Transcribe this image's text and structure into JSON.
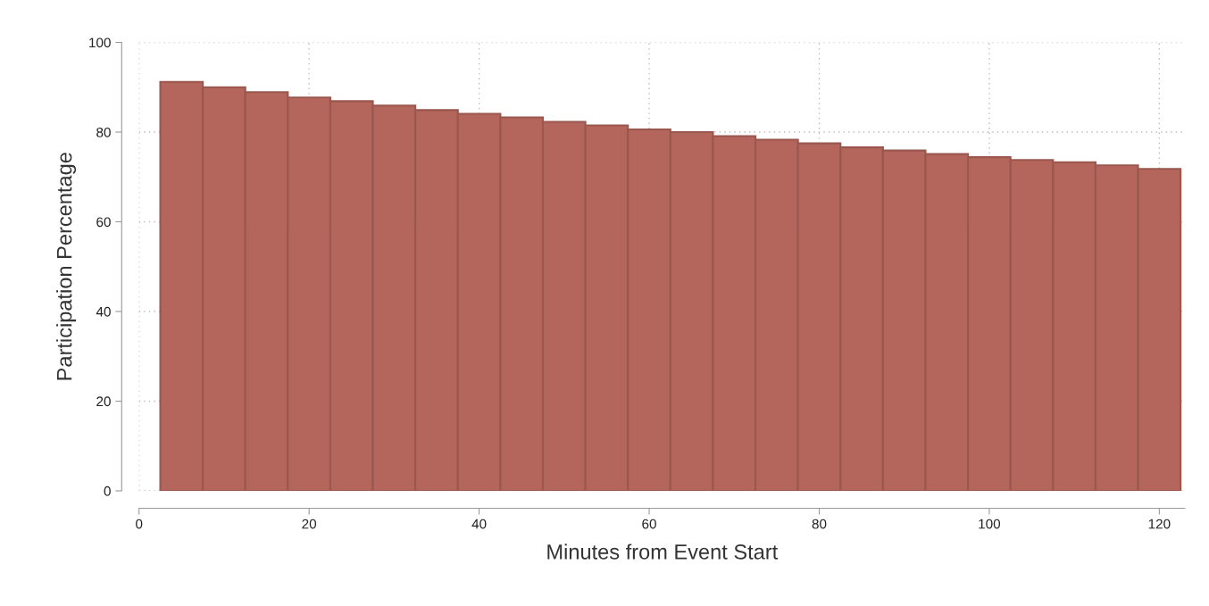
{
  "chart_data": {
    "type": "histogram",
    "xlabel": "Minutes from Event Start",
    "ylabel": "Participation Percentage",
    "bins": [
      2.5,
      7.5,
      12.5,
      17.5,
      22.5,
      27.5,
      32.5,
      37.5,
      42.5,
      47.5,
      52.5,
      57.5,
      62.5,
      67.5,
      72.5,
      77.5,
      82.5,
      87.5,
      92.5,
      97.5,
      102.5,
      107.5,
      112.5,
      117.5,
      122.5
    ],
    "values": [
      91.2,
      90.0,
      88.9,
      87.7,
      86.9,
      85.9,
      84.9,
      84.1,
      83.3,
      82.3,
      81.5,
      80.6,
      80.0,
      79.1,
      78.3,
      77.5,
      76.6,
      75.9,
      75.1,
      74.4,
      73.8,
      73.3,
      72.6,
      71.8
    ],
    "color": "#b5665c",
    "xlim": [
      0,
      123
    ],
    "ylim": [
      0,
      100
    ],
    "xticks": [
      0,
      20,
      40,
      60,
      80,
      100,
      120
    ],
    "yticks": [
      0,
      20,
      40,
      60,
      80,
      100
    ],
    "grid": true
  }
}
